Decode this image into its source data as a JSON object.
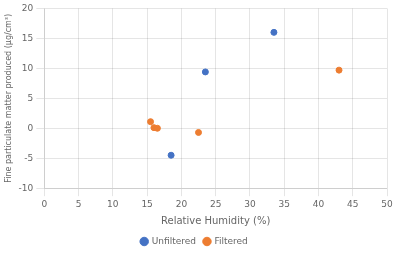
{
  "chart_data": {
    "type": "scatter",
    "xlabel": "Relative Humidity (%)",
    "ylabel": "Fine particulate matter produced (µg/cm³)",
    "series": [
      {
        "name": "Unfiltered",
        "color": "#4472c4",
        "x": [
          18.5,
          23.5,
          33.5
        ],
        "values": [
          -4.5,
          9.4,
          16.0
        ]
      },
      {
        "name": "Filtered",
        "color": "#ed7d31",
        "x": [
          15.5,
          16.0,
          16.5,
          22.5,
          43.0
        ],
        "values": [
          1.1,
          0.1,
          0.0,
          -0.7,
          9.7
        ]
      }
    ],
    "xlim": [
      0,
      50
    ],
    "ylim": [
      -10,
      20
    ],
    "xticks": [
      0,
      5,
      10,
      15,
      20,
      25,
      30,
      35,
      40,
      45,
      50
    ],
    "yticks": [
      -10,
      -5,
      0,
      5,
      10,
      15,
      20
    ],
    "grid": true,
    "legend": "bottom"
  }
}
